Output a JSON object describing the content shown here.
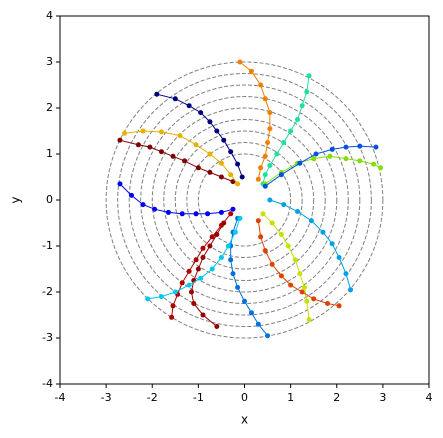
{
  "chart_data": {
    "type": "line",
    "x_label": "x",
    "y_label": "y",
    "xlim": [
      -4,
      4
    ],
    "ylim": [
      -4,
      4
    ],
    "xticks": [
      -4,
      -3,
      -2,
      -1,
      0,
      1,
      2,
      3,
      4
    ],
    "yticks": [
      -4,
      -3,
      -2,
      -1,
      0,
      1,
      2,
      3,
      4
    ],
    "circle_radii": [
      1,
      1.25,
      1.5,
      1.75,
      2,
      2.25,
      2.5,
      2.75,
      3
    ],
    "series": [
      {
        "color": "#00007f",
        "x": [
          -0.05,
          -0.15,
          -0.3,
          -0.45,
          -0.6,
          -0.75,
          -0.95,
          -1.2,
          -1.5,
          -1.9
        ],
        "values": [
          0.5,
          0.78,
          1.05,
          1.3,
          1.5,
          1.7,
          1.9,
          2.05,
          2.2,
          2.3
        ]
      },
      {
        "color": "#7f0000",
        "x": [
          -0.25,
          -0.5,
          -0.75,
          -1.0,
          -1.3,
          -1.55,
          -1.8,
          -2.05,
          -2.3,
          -2.7
        ],
        "values": [
          0.4,
          0.5,
          0.6,
          0.7,
          0.85,
          0.95,
          1.05,
          1.15,
          1.2,
          1.3
        ]
      },
      {
        "color": "#e8b000",
        "x": [
          -2.6,
          -2.2,
          -1.8,
          -1.4,
          -1.05,
          -0.75,
          -0.5,
          -0.3,
          -0.15
        ],
        "values": [
          1.45,
          1.5,
          1.48,
          1.4,
          1.2,
          1.0,
          0.8,
          0.55,
          0.35
        ]
      },
      {
        "color": "#0000f0",
        "x": [
          -2.7,
          -2.45,
          -2.2,
          -1.95,
          -1.65,
          -1.35,
          -1.05,
          -0.8,
          -0.5,
          -0.25
        ],
        "values": [
          0.35,
          0.1,
          -0.1,
          -0.2,
          -0.27,
          -0.3,
          -0.3,
          -0.3,
          -0.27,
          -0.2
        ]
      },
      {
        "color": "#b20000",
        "x": [
          -0.3,
          -0.5,
          -0.7,
          -0.9,
          -1.05,
          -1.2,
          -1.35,
          -1.45,
          -1.55,
          -1.58
        ],
        "values": [
          -0.3,
          -0.55,
          -0.8,
          -1.05,
          -1.3,
          -1.55,
          -1.8,
          -2.05,
          -2.3,
          -2.55
        ]
      },
      {
        "color": "#990000",
        "x": [
          -0.45,
          -0.6,
          -0.75,
          -0.9,
          -1.0,
          -1.1,
          -1.15,
          -1.1,
          -0.9,
          -0.6
        ],
        "values": [
          -0.5,
          -0.75,
          -1.0,
          -1.25,
          -1.5,
          -1.75,
          -2.0,
          -2.25,
          -2.5,
          -2.75
        ]
      },
      {
        "color": "#0070e0",
        "x": [
          -0.15,
          -0.25,
          -0.3,
          -0.3,
          -0.25,
          -0.15,
          0.0,
          0.15,
          0.3,
          0.5
        ],
        "values": [
          -0.4,
          -0.7,
          -1.0,
          -1.3,
          -1.6,
          -1.9,
          -2.2,
          -2.45,
          -2.7,
          -2.95
        ]
      },
      {
        "color": "#00c8f0",
        "x": [
          -0.1,
          -0.2,
          -0.35,
          -0.5,
          -0.7,
          -0.95,
          -1.2,
          -1.5,
          -1.8,
          -2.1
        ],
        "values": [
          -0.4,
          -0.7,
          -1.0,
          -1.25,
          -1.5,
          -1.7,
          -1.85,
          -2.0,
          -2.1,
          -2.15
        ]
      },
      {
        "color": "#c8e000",
        "x": [
          0.4,
          0.6,
          0.8,
          0.95,
          1.1,
          1.2,
          1.3,
          1.35,
          1.4
        ],
        "values": [
          -0.3,
          -0.5,
          -0.75,
          -1.0,
          -1.3,
          -1.6,
          -1.9,
          -2.2,
          -2.6
        ]
      },
      {
        "color": "#e04000",
        "x": [
          0.3,
          0.35,
          0.45,
          0.6,
          0.8,
          1.0,
          1.25,
          1.5,
          1.8,
          2.05
        ],
        "values": [
          -0.45,
          -0.8,
          -1.1,
          -1.4,
          -1.65,
          -1.85,
          -2.0,
          -2.15,
          -2.25,
          -2.3
        ]
      },
      {
        "color": "#00a0e8",
        "x": [
          0.55,
          0.85,
          1.15,
          1.45,
          1.7,
          1.9,
          2.05,
          2.2,
          2.3
        ],
        "values": [
          0.0,
          -0.1,
          -0.25,
          -0.45,
          -0.7,
          -0.95,
          -1.25,
          -1.6,
          -1.95
        ]
      },
      {
        "color": "#f08000",
        "x": [
          -0.1,
          0.15,
          0.35,
          0.45,
          0.55,
          0.55,
          0.5,
          0.45,
          0.35,
          0.3
        ],
        "values": [
          3.0,
          2.8,
          2.5,
          2.2,
          1.9,
          1.55,
          1.25,
          0.95,
          0.7,
          0.45
        ]
      },
      {
        "color": "#20e0a0",
        "x": [
          1.4,
          1.35,
          1.25,
          1.15,
          1.0,
          0.85,
          0.7,
          0.55,
          0.45,
          0.4
        ],
        "values": [
          2.7,
          2.35,
          2.05,
          1.75,
          1.5,
          1.25,
          1.0,
          0.75,
          0.55,
          0.35
        ]
      },
      {
        "color": "#80e000",
        "x": [
          0.45,
          0.8,
          1.15,
          1.5,
          1.85,
          2.2,
          2.5,
          2.8,
          2.95
        ],
        "values": [
          0.35,
          0.6,
          0.8,
          0.9,
          0.95,
          0.9,
          0.85,
          0.78,
          0.7
        ]
      },
      {
        "color": "#0050e8",
        "x": [
          0.45,
          0.8,
          1.2,
          1.55,
          1.9,
          2.2,
          2.5,
          2.85
        ],
        "values": [
          0.3,
          0.55,
          0.8,
          1.0,
          1.1,
          1.15,
          1.17,
          1.15
        ]
      }
    ]
  }
}
